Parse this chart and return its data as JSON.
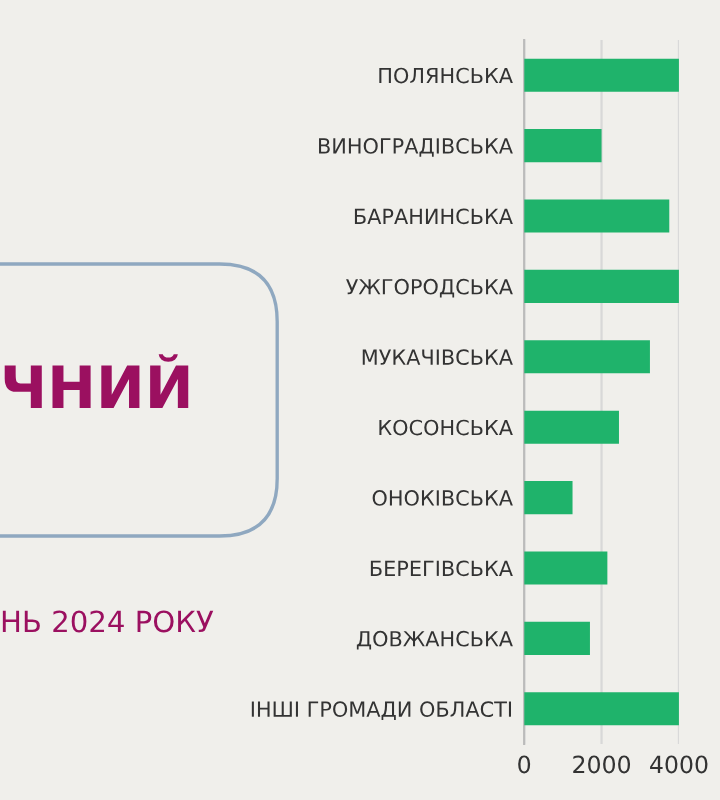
{
  "chart_data": {
    "type": "bar",
    "orientation": "horizontal",
    "categories": [
      "ПОЛЯНСЬКА",
      "ВИНОГРАДІВСЬКА",
      "БАРАНИНСЬКА",
      "УЖГОРОДСЬКА",
      "МУКАЧІВСЬКА",
      "КОСОНСЬКА",
      "ОНОКІВСЬКА",
      "БЕРЕГІВСЬКА",
      "ДОВЖАНСЬКА",
      "ІНШІ ГРОМАДИ ОБЛАСТІ"
    ],
    "values": [
      4000,
      2000,
      3750,
      4000,
      3250,
      2450,
      1250,
      2150,
      1700,
      4000
    ],
    "color": "#1fb36b",
    "xlim": [
      0,
      4000
    ],
    "xticks": [
      0,
      2000,
      4000
    ],
    "grid": "x",
    "annotations": [
      "ЧНИЙ",
      "НЬ 2024 РОКУ"
    ]
  }
}
